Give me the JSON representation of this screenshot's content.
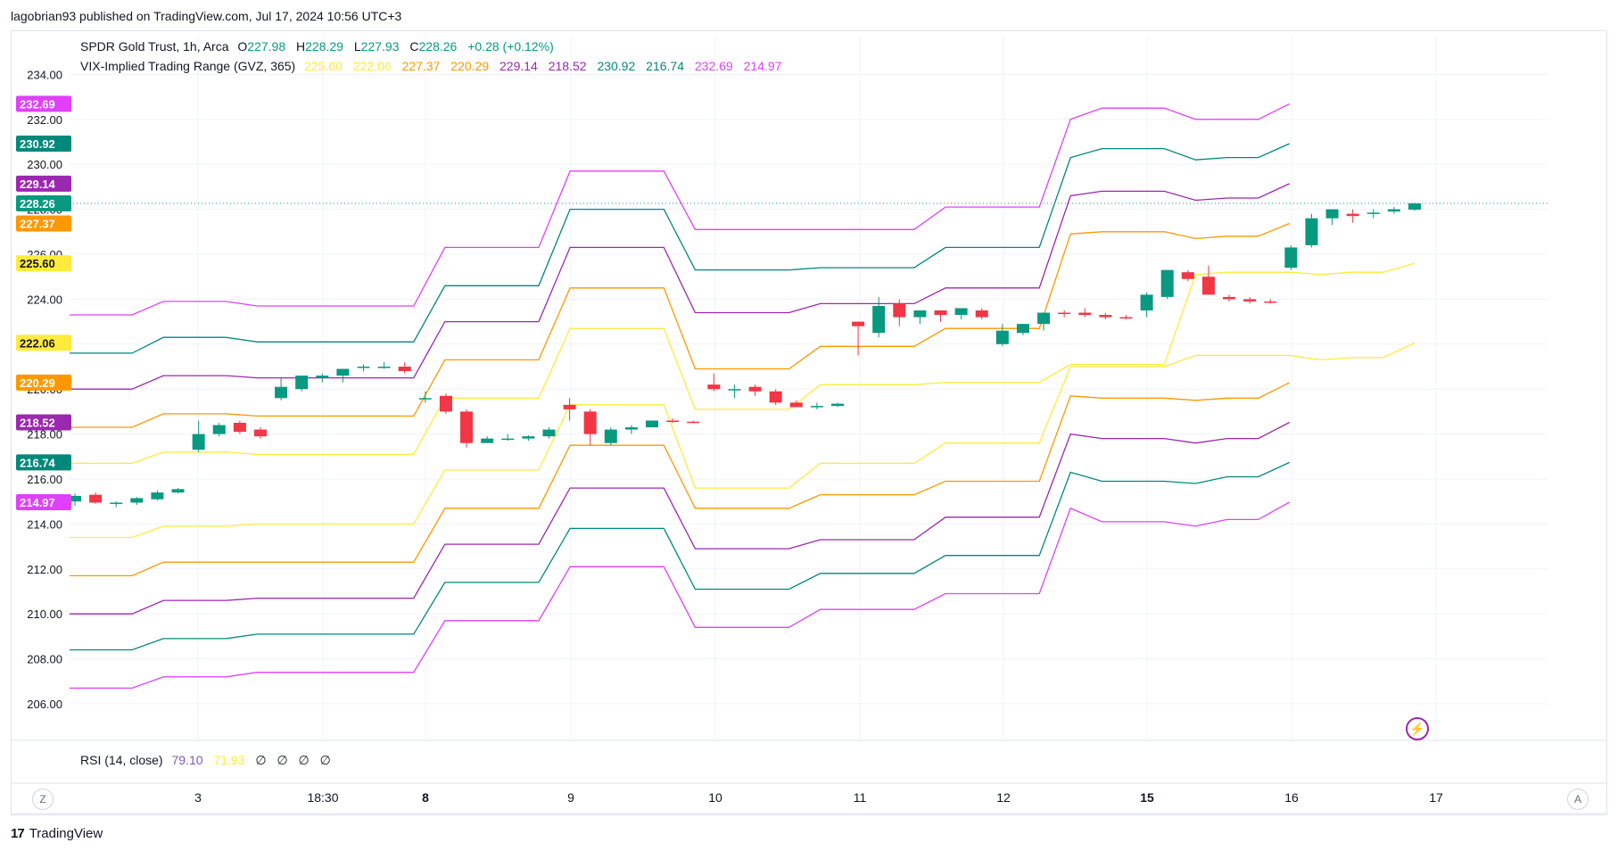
{
  "publisher": "lagobrian93 published on TradingView.com, Jul 17, 2024 10:56 UTC+3",
  "legend": {
    "symbol": "SPDR Gold Trust, 1h, Arca",
    "o_label": "O",
    "o": "227.98",
    "h_label": "H",
    "h": "228.29",
    "l_label": "L",
    "l": "227.93",
    "c_label": "C",
    "c": "228.26",
    "change": "+0.28 (+0.12%)",
    "indicator": "VIX-Implied Trading Range (GVZ, 365)",
    "ind_values": [
      "225.60",
      "222.06",
      "227.37",
      "220.29",
      "229.14",
      "218.52",
      "230.92",
      "216.74",
      "232.69",
      "214.97"
    ]
  },
  "rsi": {
    "label": "RSI (14, close)",
    "v1": "79.10",
    "v2": "71.93",
    "nulls": [
      "∅",
      "∅",
      "∅",
      "∅"
    ]
  },
  "buttons": {
    "z": "Z",
    "a": "A"
  },
  "footer": {
    "brand": "TradingView"
  },
  "colors": {
    "up": "#089981",
    "down": "#f23645",
    "yellow": "#ffeb3b",
    "orange": "#ff9800",
    "purple": "#9c27b0",
    "teal": "#00897b",
    "pink": "#e040fb",
    "text": "#131722"
  },
  "chart_data": {
    "type": "candlestick",
    "title": "SPDR Gold Trust, 1h, Arca",
    "ylim": [
      205,
      235
    ],
    "y_ticks": [
      "206.00",
      "208.00",
      "210.00",
      "212.00",
      "214.00",
      "216.00",
      "218.00",
      "220.00",
      "222.00",
      "224.00",
      "226.00",
      "228.00",
      "230.00",
      "232.00",
      "234.00"
    ],
    "x_ticks": [
      "3",
      "18:30",
      "8",
      "9",
      "10",
      "11",
      "12",
      "15",
      "16",
      "17"
    ],
    "x_ticks_bold": [
      "8",
      "15"
    ],
    "price_line": 228.26,
    "price_labels": [
      {
        "value": "232.69",
        "color": "#e040fb"
      },
      {
        "value": "230.92",
        "color": "#00897b"
      },
      {
        "value": "229.14",
        "color": "#9c27b0"
      },
      {
        "value": "228.26",
        "color": "#089981"
      },
      {
        "value": "227.37",
        "color": "#ff9800"
      },
      {
        "value": "225.60",
        "color": "#ffeb3b"
      },
      {
        "value": "222.06",
        "color": "#ffeb3b"
      },
      {
        "value": "220.29",
        "color": "#ff9800"
      },
      {
        "value": "218.52",
        "color": "#9c27b0"
      },
      {
        "value": "216.74",
        "color": "#00897b"
      },
      {
        "value": "214.97",
        "color": "#e040fb"
      }
    ],
    "candles": [
      [
        215.0,
        215.35,
        214.8,
        215.25
      ],
      [
        215.3,
        215.4,
        214.9,
        214.95
      ],
      [
        214.9,
        215.0,
        214.75,
        214.95
      ],
      [
        214.95,
        215.2,
        214.85,
        215.15
      ],
      [
        215.1,
        215.5,
        215.05,
        215.4
      ],
      [
        215.4,
        215.6,
        215.35,
        215.55
      ],
      [
        217.3,
        218.6,
        217.2,
        218.0
      ],
      [
        218.0,
        218.5,
        217.9,
        218.4
      ],
      [
        218.5,
        218.6,
        218.0,
        218.1
      ],
      [
        218.2,
        218.3,
        217.8,
        217.9
      ],
      [
        219.6,
        220.5,
        219.5,
        220.1
      ],
      [
        220.0,
        220.6,
        219.9,
        220.6
      ],
      [
        220.5,
        220.7,
        220.3,
        220.6
      ],
      [
        220.6,
        220.8,
        220.3,
        220.9
      ],
      [
        221.0,
        221.1,
        220.8,
        221.0
      ],
      [
        221.0,
        221.2,
        220.9,
        221.0
      ],
      [
        221.0,
        221.2,
        220.7,
        220.8
      ],
      [
        219.6,
        219.9,
        219.4,
        219.6
      ],
      [
        219.7,
        219.8,
        218.9,
        219.0
      ],
      [
        219.0,
        219.1,
        217.4,
        217.6
      ],
      [
        217.6,
        217.9,
        217.6,
        217.8
      ],
      [
        217.8,
        218.0,
        217.7,
        217.8
      ],
      [
        217.8,
        217.95,
        217.7,
        217.9
      ],
      [
        217.9,
        218.3,
        217.8,
        218.2
      ],
      [
        219.3,
        219.6,
        218.6,
        219.1
      ],
      [
        219.0,
        219.1,
        217.5,
        218.0
      ],
      [
        217.6,
        218.3,
        217.5,
        218.2
      ],
      [
        218.2,
        218.4,
        218.0,
        218.3
      ],
      [
        218.3,
        218.6,
        218.3,
        218.6
      ],
      [
        218.6,
        218.7,
        218.5,
        218.55
      ],
      [
        218.55,
        218.6,
        218.5,
        218.5
      ],
      [
        220.2,
        220.7,
        219.9,
        220.0
      ],
      [
        220.0,
        220.2,
        219.6,
        220.0
      ],
      [
        220.1,
        220.2,
        219.7,
        219.9
      ],
      [
        219.9,
        220.0,
        219.3,
        219.4
      ],
      [
        219.4,
        219.5,
        219.2,
        219.2
      ],
      [
        219.2,
        219.4,
        219.1,
        219.25
      ],
      [
        219.25,
        219.4,
        219.2,
        219.35
      ],
      [
        223.0,
        223.0,
        221.5,
        222.8
      ],
      [
        222.5,
        224.1,
        222.3,
        223.7
      ],
      [
        223.8,
        224.0,
        222.8,
        223.2
      ],
      [
        223.2,
        223.5,
        222.9,
        223.5
      ],
      [
        223.5,
        223.5,
        223.0,
        223.3
      ],
      [
        223.3,
        223.6,
        223.1,
        223.6
      ],
      [
        223.5,
        223.6,
        223.1,
        223.2
      ],
      [
        222.0,
        222.9,
        221.9,
        222.6
      ],
      [
        222.5,
        222.9,
        222.4,
        222.9
      ],
      [
        222.9,
        223.4,
        222.6,
        223.4
      ],
      [
        223.4,
        223.5,
        223.2,
        223.35
      ],
      [
        223.4,
        223.6,
        223.2,
        223.3
      ],
      [
        223.3,
        223.4,
        223.1,
        223.2
      ],
      [
        223.2,
        223.3,
        223.1,
        223.15
      ],
      [
        223.5,
        224.3,
        223.2,
        224.2
      ],
      [
        224.1,
        225.3,
        224.0,
        225.3
      ],
      [
        225.2,
        225.3,
        224.8,
        224.9
      ],
      [
        225.0,
        225.5,
        224.2,
        224.2
      ],
      [
        224.1,
        224.2,
        223.9,
        224.0
      ],
      [
        224.0,
        224.1,
        223.8,
        223.9
      ],
      [
        223.9,
        224.0,
        223.8,
        223.85
      ],
      [
        225.4,
        226.4,
        225.3,
        226.3
      ],
      [
        226.4,
        227.8,
        226.3,
        227.6
      ],
      [
        227.6,
        228.0,
        227.3,
        228.0
      ],
      [
        227.8,
        228.0,
        227.4,
        227.7
      ],
      [
        227.8,
        228.0,
        227.6,
        227.85
      ],
      [
        227.9,
        228.1,
        227.8,
        228.0
      ],
      [
        227.98,
        228.29,
        227.93,
        228.26
      ]
    ],
    "series": [
      {
        "name": "225.60",
        "color": "#ffeb3b",
        "values": [
          216.7,
          216.7,
          216.7,
          217.2,
          217.2,
          217.2,
          217.1,
          217.1,
          217.1,
          217.1,
          217.1,
          217.1,
          219.6,
          219.6,
          219.6,
          219.6,
          222.7,
          222.7,
          222.7,
          222.7,
          219.1,
          219.1,
          219.1,
          219.1,
          220.2,
          220.2,
          220.2,
          220.2,
          220.3,
          220.3,
          220.3,
          220.3,
          221.1,
          221.1,
          221.1,
          221.1,
          225.1,
          225.2,
          225.2,
          225.2,
          225.1,
          225.2,
          225.2,
          225.6
        ]
      },
      {
        "name": "222.06",
        "color": "#ffeb3b",
        "values": [
          213.4,
          213.4,
          213.4,
          213.9,
          213.9,
          213.9,
          214.0,
          214.0,
          214.0,
          214.0,
          214.0,
          214.0,
          216.4,
          216.4,
          216.4,
          216.4,
          219.3,
          219.3,
          219.3,
          219.3,
          215.6,
          215.6,
          215.6,
          215.6,
          216.7,
          216.7,
          216.7,
          216.7,
          217.6,
          217.6,
          217.6,
          217.6,
          221.0,
          221.0,
          221.0,
          221.0,
          221.5,
          221.5,
          221.5,
          221.5,
          221.3,
          221.4,
          221.4,
          222.06
        ]
      },
      {
        "name": "227.37",
        "color": "#ff9800",
        "values": [
          218.3,
          218.3,
          218.3,
          218.9,
          218.9,
          218.9,
          218.8,
          218.8,
          218.8,
          218.8,
          218.8,
          218.8,
          221.3,
          221.3,
          221.3,
          221.3,
          224.5,
          224.5,
          224.5,
          224.5,
          220.9,
          220.9,
          220.9,
          220.9,
          221.9,
          221.9,
          221.9,
          221.9,
          222.7,
          222.7,
          222.7,
          222.7,
          226.9,
          227.0,
          227.0,
          227.0,
          226.7,
          226.8,
          226.8,
          227.37
        ]
      },
      {
        "name": "220.29",
        "color": "#ff9800",
        "values": [
          211.7,
          211.7,
          211.7,
          212.3,
          212.3,
          212.3,
          212.3,
          212.3,
          212.3,
          212.3,
          212.3,
          212.3,
          214.7,
          214.7,
          214.7,
          214.7,
          217.5,
          217.5,
          217.5,
          217.5,
          214.7,
          214.7,
          214.7,
          214.7,
          215.3,
          215.3,
          215.3,
          215.3,
          215.9,
          215.9,
          215.9,
          215.9,
          219.7,
          219.6,
          219.6,
          219.6,
          219.5,
          219.6,
          219.6,
          220.29
        ]
      },
      {
        "name": "229.14",
        "color": "#9c27b0",
        "values": [
          220.0,
          220.0,
          220.0,
          220.6,
          220.6,
          220.6,
          220.5,
          220.5,
          220.5,
          220.5,
          220.5,
          220.5,
          223.0,
          223.0,
          223.0,
          223.0,
          226.3,
          226.3,
          226.3,
          226.3,
          223.4,
          223.4,
          223.4,
          223.4,
          223.8,
          223.8,
          223.8,
          223.8,
          224.5,
          224.5,
          224.5,
          224.5,
          228.6,
          228.8,
          228.8,
          228.8,
          228.4,
          228.5,
          228.5,
          229.14
        ]
      },
      {
        "name": "218.52",
        "color": "#9c27b0",
        "values": [
          210.0,
          210.0,
          210.0,
          210.6,
          210.6,
          210.6,
          210.7,
          210.7,
          210.7,
          210.7,
          210.7,
          210.7,
          213.1,
          213.1,
          213.1,
          213.1,
          215.6,
          215.6,
          215.6,
          215.6,
          212.9,
          212.9,
          212.9,
          212.9,
          213.3,
          213.3,
          213.3,
          213.3,
          214.3,
          214.3,
          214.3,
          214.3,
          218.0,
          217.8,
          217.8,
          217.8,
          217.6,
          217.8,
          217.8,
          218.52
        ]
      },
      {
        "name": "230.92",
        "color": "#00897b",
        "values": [
          221.6,
          221.6,
          221.6,
          222.3,
          222.3,
          222.3,
          222.1,
          222.1,
          222.1,
          222.1,
          222.1,
          222.1,
          224.6,
          224.6,
          224.6,
          224.6,
          228.0,
          228.0,
          228.0,
          228.0,
          225.3,
          225.3,
          225.3,
          225.3,
          225.4,
          225.4,
          225.4,
          225.4,
          226.3,
          226.3,
          226.3,
          226.3,
          230.3,
          230.7,
          230.7,
          230.7,
          230.2,
          230.3,
          230.3,
          230.92
        ]
      },
      {
        "name": "216.74",
        "color": "#00897b",
        "values": [
          208.4,
          208.4,
          208.4,
          208.9,
          208.9,
          208.9,
          209.1,
          209.1,
          209.1,
          209.1,
          209.1,
          209.1,
          211.4,
          211.4,
          211.4,
          211.4,
          213.8,
          213.8,
          213.8,
          213.8,
          211.1,
          211.1,
          211.1,
          211.1,
          211.8,
          211.8,
          211.8,
          211.8,
          212.6,
          212.6,
          212.6,
          212.6,
          216.3,
          215.9,
          215.9,
          215.9,
          215.8,
          216.1,
          216.1,
          216.74
        ]
      },
      {
        "name": "232.69",
        "color": "#e040fb",
        "values": [
          223.3,
          223.3,
          223.3,
          223.9,
          223.9,
          223.9,
          223.7,
          223.7,
          223.7,
          223.7,
          223.7,
          223.7,
          226.3,
          226.3,
          226.3,
          226.3,
          229.7,
          229.7,
          229.7,
          229.7,
          227.1,
          227.1,
          227.1,
          227.1,
          227.1,
          227.1,
          227.1,
          227.1,
          228.1,
          228.1,
          228.1,
          228.1,
          232.0,
          232.5,
          232.5,
          232.5,
          232.0,
          232.0,
          232.0,
          232.69
        ]
      },
      {
        "name": "214.97",
        "color": "#e040fb",
        "values": [
          206.7,
          206.7,
          206.7,
          207.2,
          207.2,
          207.2,
          207.4,
          207.4,
          207.4,
          207.4,
          207.4,
          207.4,
          209.7,
          209.7,
          209.7,
          209.7,
          212.1,
          212.1,
          212.1,
          212.1,
          209.4,
          209.4,
          209.4,
          209.4,
          210.2,
          210.2,
          210.2,
          210.2,
          210.9,
          210.9,
          210.9,
          210.9,
          214.7,
          214.1,
          214.1,
          214.1,
          213.9,
          214.2,
          214.2,
          214.97
        ]
      }
    ]
  }
}
